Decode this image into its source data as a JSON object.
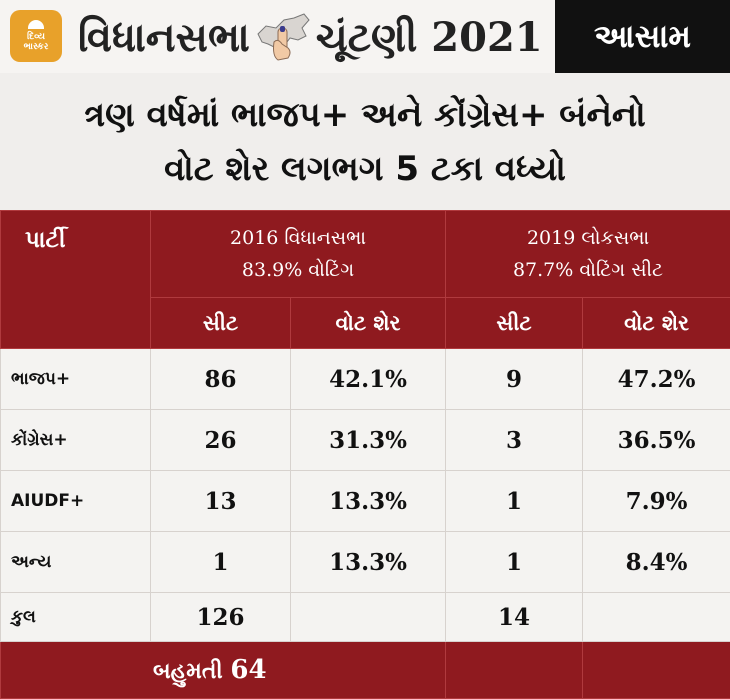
{
  "header": {
    "logo_line1": "દિવ્ય",
    "logo_line2": "ભાસ્કર",
    "title_part1": "વિધાનસભા",
    "title_part2": "ચૂંટણી 2021",
    "state": "આસામ",
    "map_icon": "assam-map-voting-finger-icon"
  },
  "headline": {
    "line1": "ત્રણ વર્ષમાં ભાજપ+ અને કોંગ્રેસ+ બંનેનો",
    "line2": "વોટ શેર લગભગ 5 ટકા વધ્યો"
  },
  "table": {
    "party_header": "પાર્ટી",
    "group1": {
      "line1": "2016 વિધાનસભા",
      "line2": "83.9% વોટિંગ"
    },
    "group2": {
      "line1": "2019 લોકસભા",
      "line2": "87.7% વોટિંગ સીટ"
    },
    "sub_headers": [
      "સીટ",
      "વોટ શેર",
      "સીટ",
      "વોટ શેર"
    ],
    "rows": [
      {
        "party": "ભાજપ+",
        "seats_2016": "86",
        "vote_2016": "42.1%",
        "seats_2019": "9",
        "vote_2019": "47.2%"
      },
      {
        "party": "કોંગ્રેસ+",
        "seats_2016": "26",
        "vote_2016": "31.3%",
        "seats_2019": "3",
        "vote_2019": "36.5%"
      },
      {
        "party": "AIUDF+",
        "seats_2016": "13",
        "vote_2016": "13.3%",
        "seats_2019": "1",
        "vote_2019": "7.9%"
      },
      {
        "party": "અન્ય",
        "seats_2016": "1",
        "vote_2016": "13.3%",
        "seats_2019": "1",
        "vote_2019": "8.4%"
      }
    ],
    "total": {
      "party": "કુલ",
      "seats_2016": "126",
      "seats_2019": "14"
    },
    "majority": {
      "label": "બહુમતી",
      "value": "64"
    }
  },
  "colors": {
    "maroon": "#8f1a1f",
    "black": "#111111",
    "logo_orange": "#e8a12a"
  }
}
